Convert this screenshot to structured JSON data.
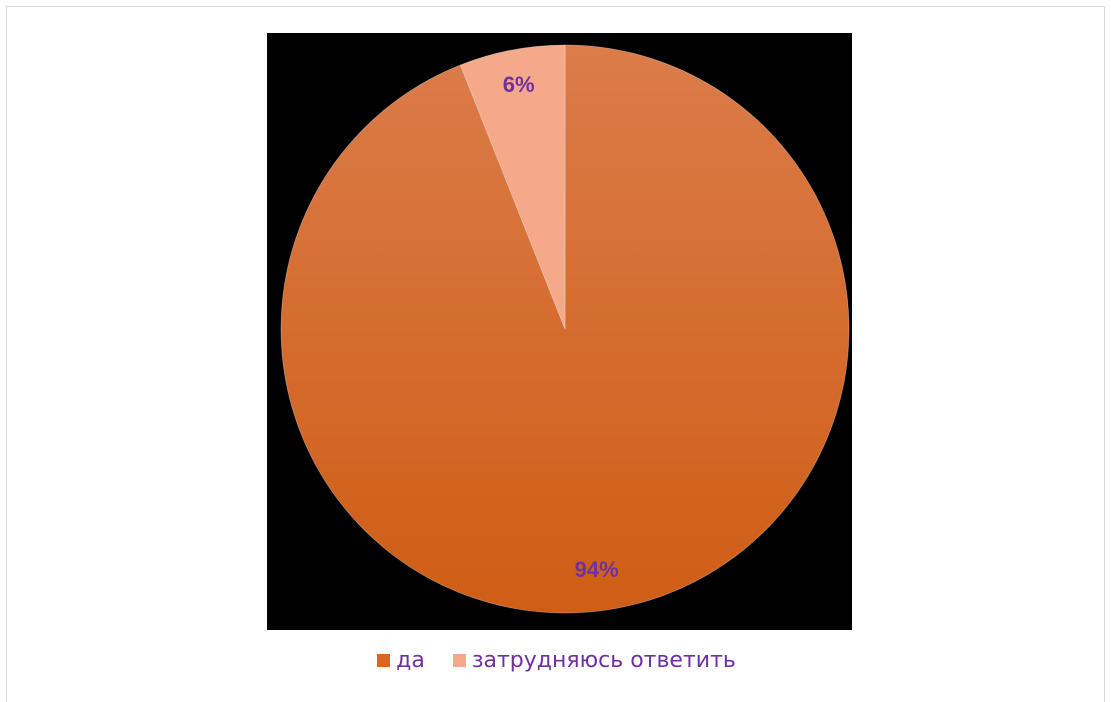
{
  "chart_data": {
    "type": "pie",
    "title": "",
    "categories": [
      "да",
      "затрудняюсь ответить"
    ],
    "values": [
      94,
      6
    ],
    "labels": [
      "94%",
      "6%"
    ],
    "colors": [
      "#d9671f",
      "#f4a98a"
    ],
    "gradient": {
      "top": "#db7c4a",
      "bottom": "#cf5d15"
    },
    "label_color": "#7030a0",
    "background": "#000000",
    "legend_position": "bottom"
  }
}
